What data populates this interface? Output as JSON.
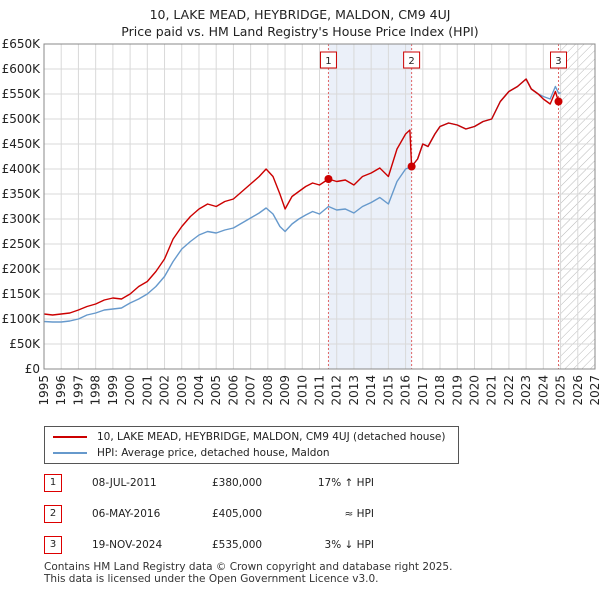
{
  "header": {
    "title_line1": "10, LAKE MEAD, HEYBRIDGE, MALDON, CM9 4UJ",
    "title_line2": "Price paid vs. HM Land Registry's House Price Index (HPI)"
  },
  "chart_data": {
    "type": "line",
    "title": "10, LAKE MEAD, HEYBRIDGE, MALDON, CM9 4UJ — Price paid vs. HM Land Registry's House Price Index (HPI)",
    "xlabel": "",
    "ylabel": "",
    "xlim": [
      1995,
      2027
    ],
    "ylim": [
      0,
      650000
    ],
    "x_ticks": [
      1995,
      1996,
      1997,
      1998,
      1999,
      2000,
      2001,
      2002,
      2003,
      2004,
      2005,
      2006,
      2007,
      2008,
      2009,
      2010,
      2011,
      2012,
      2013,
      2014,
      2015,
      2016,
      2017,
      2018,
      2019,
      2020,
      2021,
      2022,
      2023,
      2024,
      2025,
      2026,
      2027
    ],
    "y_ticks": [
      {
        "value": 0,
        "label": "£0"
      },
      {
        "value": 50000,
        "label": "£50K"
      },
      {
        "value": 100000,
        "label": "£100K"
      },
      {
        "value": 150000,
        "label": "£150K"
      },
      {
        "value": 200000,
        "label": "£200K"
      },
      {
        "value": 250000,
        "label": "£250K"
      },
      {
        "value": 300000,
        "label": "£300K"
      },
      {
        "value": 350000,
        "label": "£350K"
      },
      {
        "value": 400000,
        "label": "£400K"
      },
      {
        "value": 450000,
        "label": "£450K"
      },
      {
        "value": 500000,
        "label": "£500K"
      },
      {
        "value": 550000,
        "label": "£550K"
      },
      {
        "value": 600000,
        "label": "£600K"
      },
      {
        "value": 650000,
        "label": "£650K"
      }
    ],
    "grid": true,
    "highlight_band": {
      "from": 2011.52,
      "to": 2016.35,
      "color": "#dde6f5"
    },
    "future_hatch_from": 2024.9,
    "series": [
      {
        "name": "10, LAKE MEAD, HEYBRIDGE, MALDON, CM9 4UJ (detached house)",
        "color": "#cc0000",
        "points": [
          [
            1995.0,
            110000
          ],
          [
            1995.5,
            108000
          ],
          [
            1996.0,
            110000
          ],
          [
            1996.5,
            112000
          ],
          [
            1997.0,
            118000
          ],
          [
            1997.5,
            125000
          ],
          [
            1998.0,
            130000
          ],
          [
            1998.5,
            138000
          ],
          [
            1999.0,
            142000
          ],
          [
            1999.5,
            140000
          ],
          [
            2000.0,
            150000
          ],
          [
            2000.5,
            165000
          ],
          [
            2001.0,
            175000
          ],
          [
            2001.5,
            195000
          ],
          [
            2002.0,
            220000
          ],
          [
            2002.5,
            260000
          ],
          [
            2003.0,
            285000
          ],
          [
            2003.5,
            305000
          ],
          [
            2004.0,
            320000
          ],
          [
            2004.5,
            330000
          ],
          [
            2005.0,
            325000
          ],
          [
            2005.5,
            335000
          ],
          [
            2006.0,
            340000
          ],
          [
            2006.5,
            355000
          ],
          [
            2007.0,
            370000
          ],
          [
            2007.5,
            385000
          ],
          [
            2007.9,
            400000
          ],
          [
            2008.3,
            385000
          ],
          [
            2008.7,
            350000
          ],
          [
            2009.0,
            320000
          ],
          [
            2009.4,
            345000
          ],
          [
            2009.8,
            355000
          ],
          [
            2010.2,
            365000
          ],
          [
            2010.6,
            372000
          ],
          [
            2011.0,
            368000
          ],
          [
            2011.52,
            380000
          ],
          [
            2012.0,
            375000
          ],
          [
            2012.5,
            378000
          ],
          [
            2013.0,
            368000
          ],
          [
            2013.5,
            385000
          ],
          [
            2014.0,
            392000
          ],
          [
            2014.5,
            402000
          ],
          [
            2015.0,
            385000
          ],
          [
            2015.5,
            440000
          ],
          [
            2016.0,
            470000
          ],
          [
            2016.25,
            478000
          ],
          [
            2016.35,
            405000
          ],
          [
            2016.7,
            420000
          ],
          [
            2017.0,
            450000
          ],
          [
            2017.3,
            445000
          ],
          [
            2017.7,
            470000
          ],
          [
            2018.0,
            485000
          ],
          [
            2018.5,
            492000
          ],
          [
            2019.0,
            488000
          ],
          [
            2019.5,
            480000
          ],
          [
            2020.0,
            485000
          ],
          [
            2020.5,
            495000
          ],
          [
            2021.0,
            500000
          ],
          [
            2021.5,
            535000
          ],
          [
            2022.0,
            555000
          ],
          [
            2022.5,
            565000
          ],
          [
            2023.0,
            580000
          ],
          [
            2023.3,
            560000
          ],
          [
            2023.7,
            550000
          ],
          [
            2024.0,
            540000
          ],
          [
            2024.4,
            530000
          ],
          [
            2024.7,
            555000
          ],
          [
            2024.88,
            535000
          ],
          [
            2025.0,
            535000
          ]
        ]
      },
      {
        "name": "HPI: Average price, detached house, Maldon",
        "color": "#6699cc",
        "points": [
          [
            1995.0,
            95000
          ],
          [
            1995.5,
            94000
          ],
          [
            1996.0,
            94000
          ],
          [
            1996.5,
            96000
          ],
          [
            1997.0,
            100000
          ],
          [
            1997.5,
            108000
          ],
          [
            1998.0,
            112000
          ],
          [
            1998.5,
            118000
          ],
          [
            1999.0,
            120000
          ],
          [
            1999.5,
            122000
          ],
          [
            2000.0,
            132000
          ],
          [
            2000.5,
            140000
          ],
          [
            2001.0,
            150000
          ],
          [
            2001.5,
            165000
          ],
          [
            2002.0,
            185000
          ],
          [
            2002.5,
            215000
          ],
          [
            2003.0,
            240000
          ],
          [
            2003.5,
            255000
          ],
          [
            2004.0,
            268000
          ],
          [
            2004.5,
            275000
          ],
          [
            2005.0,
            272000
          ],
          [
            2005.5,
            278000
          ],
          [
            2006.0,
            282000
          ],
          [
            2006.5,
            292000
          ],
          [
            2007.0,
            302000
          ],
          [
            2007.5,
            312000
          ],
          [
            2007.9,
            322000
          ],
          [
            2008.3,
            310000
          ],
          [
            2008.7,
            285000
          ],
          [
            2009.0,
            275000
          ],
          [
            2009.4,
            290000
          ],
          [
            2009.8,
            300000
          ],
          [
            2010.2,
            308000
          ],
          [
            2010.6,
            315000
          ],
          [
            2011.0,
            310000
          ],
          [
            2011.52,
            325000
          ],
          [
            2012.0,
            318000
          ],
          [
            2012.5,
            320000
          ],
          [
            2013.0,
            312000
          ],
          [
            2013.5,
            325000
          ],
          [
            2014.0,
            333000
          ],
          [
            2014.5,
            343000
          ],
          [
            2015.0,
            330000
          ],
          [
            2015.5,
            375000
          ],
          [
            2016.0,
            400000
          ],
          [
            2016.35,
            405000
          ],
          [
            2016.7,
            420000
          ],
          [
            2017.0,
            450000
          ],
          [
            2017.3,
            445000
          ],
          [
            2017.7,
            470000
          ],
          [
            2018.0,
            485000
          ],
          [
            2018.5,
            492000
          ],
          [
            2019.0,
            488000
          ],
          [
            2019.5,
            480000
          ],
          [
            2020.0,
            485000
          ],
          [
            2020.5,
            495000
          ],
          [
            2021.0,
            500000
          ],
          [
            2021.5,
            535000
          ],
          [
            2022.0,
            555000
          ],
          [
            2022.5,
            565000
          ],
          [
            2023.0,
            580000
          ],
          [
            2023.3,
            560000
          ],
          [
            2023.7,
            550000
          ],
          [
            2024.0,
            545000
          ],
          [
            2024.4,
            540000
          ],
          [
            2024.7,
            565000
          ],
          [
            2024.88,
            552000
          ],
          [
            2025.0,
            552000
          ]
        ]
      }
    ],
    "sales": [
      {
        "id": "1",
        "x": 2011.52,
        "price": 380000
      },
      {
        "id": "2",
        "x": 2016.35,
        "price": 405000
      },
      {
        "id": "3",
        "x": 2024.88,
        "price": 535000
      }
    ]
  },
  "legend": {
    "items": [
      {
        "label": "10, LAKE MEAD, HEYBRIDGE, MALDON, CM9 4UJ (detached house)",
        "color": "#cc0000"
      },
      {
        "label": "HPI: Average price, detached house, Maldon",
        "color": "#6699cc"
      }
    ]
  },
  "sales_table": [
    {
      "id": "1",
      "date": "08-JUL-2011",
      "price": "£380,000",
      "delta": "17% ↑ HPI"
    },
    {
      "id": "2",
      "date": "06-MAY-2016",
      "price": "£405,000",
      "delta": "≈ HPI"
    },
    {
      "id": "3",
      "date": "19-NOV-2024",
      "price": "£535,000",
      "delta": "3% ↓ HPI"
    }
  ],
  "footer": {
    "line1": "Contains HM Land Registry data © Crown copyright and database right 2025.",
    "line2": "This data is licensed under the Open Government Licence v3.0."
  },
  "colors": {
    "property": "#cc0000",
    "hpi": "#6699cc",
    "band": "#dde6f5",
    "grid": "#d9d9d9",
    "marker_border": "#cc0000"
  }
}
